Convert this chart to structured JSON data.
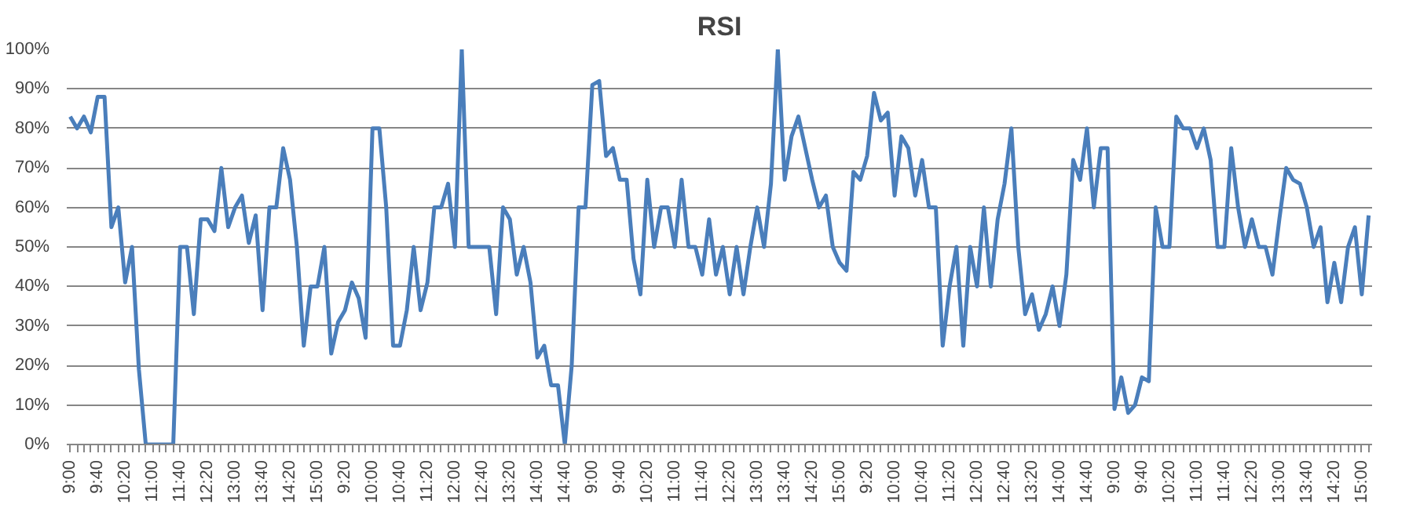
{
  "chart_data": {
    "type": "line",
    "title": "RSI",
    "categories": [
      "9:00",
      null,
      null,
      null,
      "9:40",
      null,
      null,
      null,
      "10:20",
      null,
      null,
      null,
      "11:00",
      null,
      null,
      null,
      "11:40",
      null,
      null,
      null,
      "12:20",
      null,
      null,
      null,
      "13:00",
      null,
      null,
      null,
      "13:40",
      null,
      null,
      null,
      "14:20",
      null,
      null,
      null,
      "15:00",
      null,
      null,
      null,
      "9:20",
      null,
      null,
      null,
      "10:00",
      null,
      null,
      null,
      "10:40",
      null,
      null,
      null,
      "11:20",
      null,
      null,
      null,
      "12:00",
      null,
      null,
      null,
      "12:40",
      null,
      null,
      null,
      "13:20",
      null,
      null,
      null,
      "14:00",
      null,
      null,
      null,
      "14:40",
      null,
      null,
      null,
      "9:00",
      null,
      null,
      null,
      "9:40",
      null,
      null,
      null,
      "10:20",
      null,
      null,
      null,
      "11:00",
      null,
      null,
      null,
      "11:40",
      null,
      null,
      null,
      "12:20",
      null,
      null,
      null,
      "13:00",
      null,
      null,
      null,
      "13:40",
      null,
      null,
      null,
      "14:20",
      null,
      null,
      null,
      "15:00",
      null,
      null,
      null,
      "9:20",
      null,
      null,
      null,
      "10:00",
      null,
      null,
      null,
      "10:40",
      null,
      null,
      null,
      "11:20",
      null,
      null,
      null,
      "12:00",
      null,
      null,
      null,
      "12:40",
      null,
      null,
      null,
      "13:20",
      null,
      null,
      null,
      "14:00",
      null,
      null,
      null,
      "14:40",
      null,
      null,
      null,
      "9:00",
      null,
      null,
      null,
      "9:40",
      null,
      null,
      null,
      "10:20",
      null,
      null,
      null,
      "11:00",
      null,
      null,
      null,
      "11:40",
      null,
      null,
      null,
      "12:20",
      null,
      null,
      null,
      "13:00",
      null,
      null,
      null,
      "13:40",
      null,
      null,
      null,
      "14:20",
      null,
      null,
      null,
      "15:00",
      null
    ],
    "series": [
      {
        "color": "#4a7ebb",
        "values": [
          83,
          80,
          83,
          79,
          88,
          88,
          55,
          60,
          41,
          50,
          19,
          0,
          0,
          0,
          0,
          0,
          50,
          50,
          33,
          57,
          57,
          54,
          70,
          55,
          60,
          63,
          51,
          58,
          34,
          60,
          60,
          75,
          67,
          50,
          25,
          40,
          40,
          50,
          23,
          31,
          34,
          41,
          37,
          27,
          80,
          80,
          60,
          25,
          25,
          34,
          50,
          34,
          41,
          60,
          60,
          66,
          50,
          100,
          50,
          50,
          50,
          50,
          33,
          60,
          57,
          43,
          50,
          41,
          22,
          25,
          15,
          15,
          0,
          20,
          60,
          60,
          91,
          92,
          73,
          75,
          67,
          67,
          47,
          38,
          67,
          50,
          60,
          60,
          50,
          67,
          50,
          50,
          43,
          57,
          43,
          50,
          38,
          50,
          38,
          50,
          60,
          50,
          66,
          100,
          67,
          78,
          83,
          75,
          67,
          60,
          63,
          50,
          46,
          44,
          69,
          67,
          73,
          89,
          82,
          84,
          63,
          78,
          75,
          63,
          72,
          60,
          60,
          25,
          40,
          50,
          25,
          50,
          40,
          60,
          40,
          57,
          66,
          80,
          50,
          33,
          38,
          29,
          33,
          40,
          30,
          43,
          72,
          67,
          80,
          60,
          75,
          75,
          9,
          17,
          8,
          10,
          17,
          16,
          60,
          50,
          50,
          83,
          80,
          80,
          75,
          80,
          72,
          50,
          50,
          75,
          60,
          50,
          57,
          50,
          50,
          43,
          57,
          70,
          67,
          66,
          60,
          50,
          55,
          36,
          46,
          36,
          50,
          55,
          38,
          58
        ]
      }
    ],
    "ylim": [
      0,
      100
    ],
    "yticks": [
      {
        "value": 0,
        "label": "0%"
      },
      {
        "value": 10,
        "label": "10%"
      },
      {
        "value": 20,
        "label": "20%"
      },
      {
        "value": 30,
        "label": "30%"
      },
      {
        "value": 40,
        "label": "40%"
      },
      {
        "value": 50,
        "label": "50%"
      },
      {
        "value": 60,
        "label": "60%"
      },
      {
        "value": 70,
        "label": "70%"
      },
      {
        "value": 80,
        "label": "80%"
      },
      {
        "value": 90,
        "label": "90%"
      },
      {
        "value": 100,
        "label": "100%"
      }
    ],
    "grid": "y"
  }
}
